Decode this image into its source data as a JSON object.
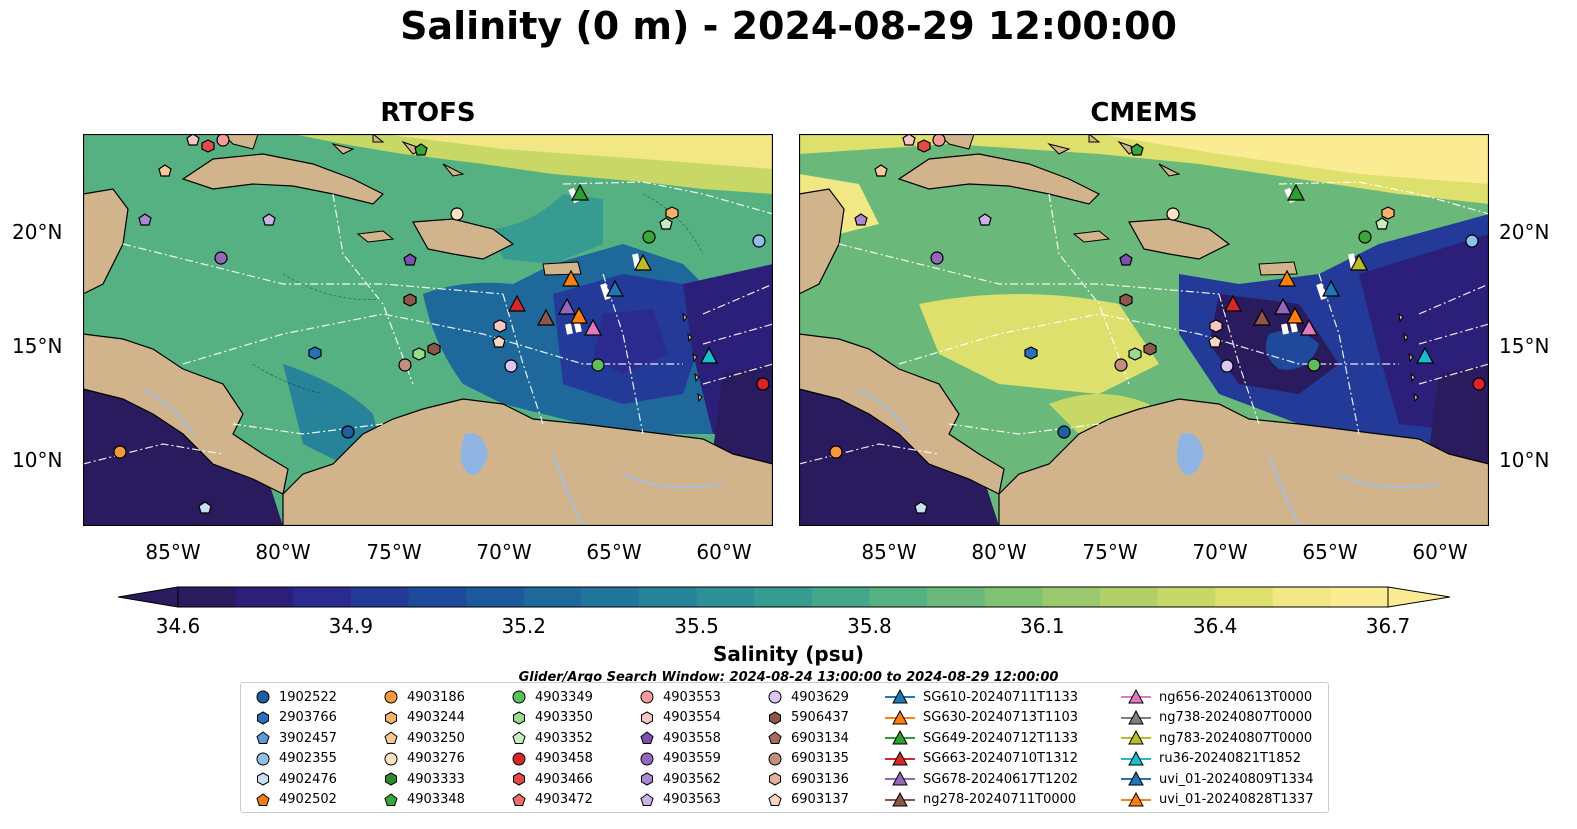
{
  "title": "Salinity (0 m) - 2024-08-29 12:00:00",
  "panels": [
    {
      "name": "RTOFS"
    },
    {
      "name": "CMEMS"
    }
  ],
  "axes": {
    "lon_ticks": [
      "85°W",
      "80°W",
      "75°W",
      "70°W",
      "65°W",
      "60°W"
    ],
    "lat_ticks": [
      "20°N",
      "15°N",
      "10°N"
    ]
  },
  "colorbar": {
    "label": "Salinity (psu)",
    "ticks": [
      "34.6",
      "34.9",
      "35.2",
      "35.5",
      "35.8",
      "36.1",
      "36.4",
      "36.7"
    ],
    "range": [
      34.6,
      36.7
    ],
    "extend": "both",
    "colors": [
      "#2a1a5e",
      "#2b1f7a",
      "#2a2a8f",
      "#243a98",
      "#1f4a9c",
      "#1d5a9d",
      "#1e689c",
      "#21769b",
      "#268399",
      "#2c9096",
      "#369c91",
      "#44a789",
      "#56b182",
      "#6ab97b",
      "#80c172",
      "#99c96c",
      "#b1d067",
      "#c8d866",
      "#dee06e",
      "#f1e885",
      "#fbeb93"
    ]
  },
  "search_window": "Glider/Argo Search Window: 2024-08-24 13:00:00 to 2024-08-29 12:00:00",
  "legend": {
    "columns": [
      [
        {
          "label": "1902522",
          "marker": "circle",
          "color": "#1f5fa0"
        },
        {
          "label": "2903766",
          "marker": "hexagon",
          "color": "#2a70b8"
        },
        {
          "label": "3902457",
          "marker": "pentagon",
          "color": "#5b9bd5"
        },
        {
          "label": "4902355",
          "marker": "circle",
          "color": "#8fc0ea"
        },
        {
          "label": "4902476",
          "marker": "hexagon",
          "color": "#c7e0f4"
        },
        {
          "label": "4902502",
          "marker": "pentagon",
          "color": "#f07f0f"
        }
      ],
      [
        {
          "label": "4903186",
          "marker": "circle",
          "color": "#f59a3c"
        },
        {
          "label": "4903244",
          "marker": "hexagon",
          "color": "#f6b26b"
        },
        {
          "label": "4903250",
          "marker": "pentagon",
          "color": "#f8c898"
        },
        {
          "label": "4903276",
          "marker": "circle",
          "color": "#fde3c3"
        },
        {
          "label": "4903333",
          "marker": "hexagon",
          "color": "#2b8a2b"
        },
        {
          "label": "4903348",
          "marker": "pentagon",
          "color": "#3aa63a"
        }
      ],
      [
        {
          "label": "4903349",
          "marker": "circle",
          "color": "#5bbf5b"
        },
        {
          "label": "4903350",
          "marker": "hexagon",
          "color": "#98db8c"
        },
        {
          "label": "4903352",
          "marker": "pentagon",
          "color": "#c8edbf"
        },
        {
          "label": "4903458",
          "marker": "circle",
          "color": "#d62728"
        },
        {
          "label": "4903466",
          "marker": "hexagon",
          "color": "#e34a4a"
        },
        {
          "label": "4903472",
          "marker": "pentagon",
          "color": "#ee6e6e"
        }
      ],
      [
        {
          "label": "4903553",
          "marker": "circle",
          "color": "#f49c9c"
        },
        {
          "label": "4903554",
          "marker": "hexagon",
          "color": "#f9c6c6"
        },
        {
          "label": "4903558",
          "marker": "pentagon",
          "color": "#7a50b0"
        },
        {
          "label": "4903559",
          "marker": "circle",
          "color": "#9467bd"
        },
        {
          "label": "4903562",
          "marker": "hexagon",
          "color": "#a98ad2"
        },
        {
          "label": "4903563",
          "marker": "pentagon",
          "color": "#c9b3e8"
        }
      ],
      [
        {
          "label": "4903629",
          "marker": "circle",
          "color": "#dcc7f2"
        },
        {
          "label": "5906437",
          "marker": "hexagon",
          "color": "#8c564b"
        },
        {
          "label": "6903134",
          "marker": "pentagon",
          "color": "#a56d5e"
        },
        {
          "label": "6903135",
          "marker": "circle",
          "color": "#c48d7c"
        },
        {
          "label": "6903136",
          "marker": "hexagon",
          "color": "#e3b29f"
        },
        {
          "label": "6903137",
          "marker": "pentagon",
          "color": "#f8d6c6"
        }
      ],
      [
        {
          "label": "SG610-20240711T1133",
          "marker": "triangle",
          "color": "#1f77b4"
        },
        {
          "label": "SG630-20240713T1103",
          "marker": "triangle",
          "color": "#ff7f0e"
        },
        {
          "label": "SG649-20240712T1133",
          "marker": "triangle",
          "color": "#2ca02c"
        },
        {
          "label": "SG663-20240710T1312",
          "marker": "triangle",
          "color": "#d62728"
        },
        {
          "label": "SG678-20240617T1202",
          "marker": "triangle",
          "color": "#9467bd"
        },
        {
          "label": "ng278-20240711T0000",
          "marker": "triangle",
          "color": "#8c564b"
        }
      ],
      [
        {
          "label": "ng656-20240613T0000",
          "marker": "triangle",
          "color": "#e377c2"
        },
        {
          "label": "ng738-20240807T0000",
          "marker": "triangle",
          "color": "#7f7f7f"
        },
        {
          "label": "ng783-20240807T0000",
          "marker": "triangle",
          "color": "#bcbd22"
        },
        {
          "label": "ru36-20240821T1852",
          "marker": "triangle",
          "color": "#17becf"
        },
        {
          "label": "uvi_01-20240809T1334",
          "marker": "triangle",
          "color": "#1f77b4"
        },
        {
          "label": "uvi_01-20240828T1337",
          "marker": "triangle",
          "color": "#ff7f0e"
        }
      ]
    ]
  }
}
